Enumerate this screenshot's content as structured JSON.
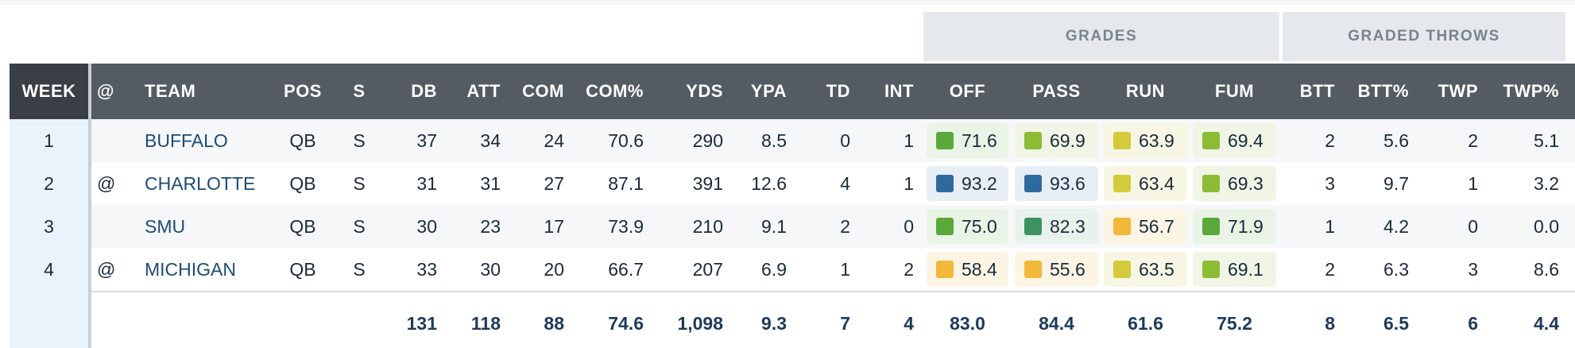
{
  "groups": [
    {
      "label": "GRADES",
      "start": "off",
      "end": "fum"
    },
    {
      "label": "GRADED THROWS",
      "start": "btt",
      "end": "twp_pct"
    }
  ],
  "columns": [
    {
      "key": "week",
      "label": "WEEK",
      "align": "center"
    },
    {
      "key": "at",
      "label": "@",
      "align": "left"
    },
    {
      "key": "team",
      "label": "TEAM",
      "align": "left"
    },
    {
      "key": "pos",
      "label": "POS",
      "align": "center"
    },
    {
      "key": "s",
      "label": "S",
      "align": "center"
    },
    {
      "key": "db",
      "label": "DB",
      "align": "right"
    },
    {
      "key": "att",
      "label": "ATT",
      "align": "right"
    },
    {
      "key": "com",
      "label": "COM",
      "align": "right"
    },
    {
      "key": "com_pct",
      "label": "COM%",
      "align": "right"
    },
    {
      "key": "yds",
      "label": "YDS",
      "align": "right"
    },
    {
      "key": "ypa",
      "label": "YPA",
      "align": "right"
    },
    {
      "key": "td",
      "label": "TD",
      "align": "right"
    },
    {
      "key": "int",
      "label": "INT",
      "align": "right"
    },
    {
      "key": "off",
      "label": "OFF",
      "align": "center",
      "grade": true
    },
    {
      "key": "pass",
      "label": "PASS",
      "align": "center",
      "grade": true
    },
    {
      "key": "run",
      "label": "RUN",
      "align": "center",
      "grade": true
    },
    {
      "key": "fum",
      "label": "FUM",
      "align": "center",
      "grade": true
    },
    {
      "key": "btt",
      "label": "BTT",
      "align": "right"
    },
    {
      "key": "btt_pct",
      "label": "BTT%",
      "align": "right"
    },
    {
      "key": "twp",
      "label": "TWP",
      "align": "right"
    },
    {
      "key": "twp_pct",
      "label": "TWP%",
      "align": "right"
    }
  ],
  "rows": [
    {
      "week": "1",
      "at": "",
      "team": "BUFFALO",
      "pos": "QB",
      "s": "S",
      "db": "37",
      "att": "34",
      "com": "24",
      "com_pct": "70.6",
      "yds": "290",
      "ypa": "8.5",
      "td": "0",
      "int": "1",
      "off": "71.6",
      "pass": "69.9",
      "run": "63.9",
      "fum": "69.4",
      "btt": "2",
      "btt_pct": "5.6",
      "twp": "2",
      "twp_pct": "5.1"
    },
    {
      "week": "2",
      "at": "@",
      "team": "CHARLOTTE",
      "pos": "QB",
      "s": "S",
      "db": "31",
      "att": "31",
      "com": "27",
      "com_pct": "87.1",
      "yds": "391",
      "ypa": "12.6",
      "td": "4",
      "int": "1",
      "off": "93.2",
      "pass": "93.6",
      "run": "63.4",
      "fum": "69.3",
      "btt": "3",
      "btt_pct": "9.7",
      "twp": "1",
      "twp_pct": "3.2"
    },
    {
      "week": "3",
      "at": "",
      "team": "SMU",
      "pos": "QB",
      "s": "S",
      "db": "30",
      "att": "23",
      "com": "17",
      "com_pct": "73.9",
      "yds": "210",
      "ypa": "9.1",
      "td": "2",
      "int": "0",
      "off": "75.0",
      "pass": "82.3",
      "run": "56.7",
      "fum": "71.9",
      "btt": "1",
      "btt_pct": "4.2",
      "twp": "0",
      "twp_pct": "0.0"
    },
    {
      "week": "4",
      "at": "@",
      "team": "MICHIGAN",
      "pos": "QB",
      "s": "S",
      "db": "33",
      "att": "30",
      "com": "20",
      "com_pct": "66.7",
      "yds": "207",
      "ypa": "6.9",
      "td": "1",
      "int": "2",
      "off": "58.4",
      "pass": "55.6",
      "run": "63.5",
      "fum": "69.1",
      "btt": "2",
      "btt_pct": "6.3",
      "twp": "3",
      "twp_pct": "8.6"
    }
  ],
  "totals": {
    "db": "131",
    "att": "118",
    "com": "88",
    "com_pct": "74.6",
    "yds": "1,098",
    "ypa": "9.3",
    "td": "7",
    "int": "4",
    "off": "83.0",
    "pass": "84.4",
    "run": "61.6",
    "fum": "75.2",
    "btt": "8",
    "btt_pct": "6.5",
    "twp": "6",
    "twp_pct": "4.4"
  },
  "grade_colors": [
    {
      "min": 90,
      "square": "#2f6a9e",
      "bg": "#e8eef6"
    },
    {
      "min": 80,
      "square": "#3e9160",
      "bg": "#e8f2ec"
    },
    {
      "min": 70,
      "square": "#5aa83a",
      "bg": "#eaf4e6"
    },
    {
      "min": 64,
      "square": "#8cbc36",
      "bg": "#f0f5e6"
    },
    {
      "min": 60,
      "square": "#d3cb3a",
      "bg": "#f7f6e4"
    },
    {
      "min": 0,
      "square": "#f1b83a",
      "bg": "#fcf5e4"
    }
  ]
}
